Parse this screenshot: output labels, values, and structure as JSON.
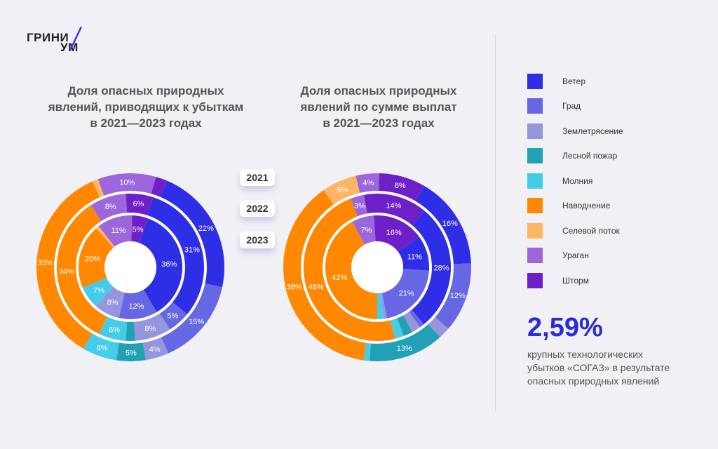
{
  "logo": {
    "line1": "ГРИНИ",
    "line2": "УМ",
    "accent": "#3a3aee"
  },
  "titles": {
    "left": [
      "Доля опасных природных",
      "явлений, приводящих к убыткам",
      "в 2021—2023 годах"
    ],
    "right": [
      "Доля опасных природных",
      "явлений по сумме выплат",
      "в 2021—2023 годах"
    ]
  },
  "years": [
    "2021",
    "2022",
    "2023"
  ],
  "legend": [
    {
      "label": "Ветер",
      "color": "#2e2ee6"
    },
    {
      "label": "Град",
      "color": "#6767e3"
    },
    {
      "label": "Землетрясение",
      "color": "#9696de"
    },
    {
      "label": "Лесной пожар",
      "color": "#22a0b6"
    },
    {
      "label": "Молния",
      "color": "#44cce8"
    },
    {
      "label": "Наводнение",
      "color": "#ff8800"
    },
    {
      "label": "Селевой поток",
      "color": "#ffb566"
    },
    {
      "label": "Ураган",
      "color": "#9d66dc"
    },
    {
      "label": "Шторм",
      "color": "#6e20c8"
    }
  ],
  "stat": {
    "value": "2,59%",
    "description": [
      "крупных технологических",
      "убытков «СОГАЗ» в результате",
      "опасных природных явлений"
    ]
  },
  "chart_data": [
    {
      "type": "donut",
      "title": "Доля опасных природных явлений, приводящих к убыткам в 2021—2023 годах",
      "rings": [
        "2021",
        "2022",
        "2023"
      ],
      "series": [
        {
          "name": "2021",
          "values": {
            "Ветер": 36,
            "Град": 12,
            "Землетрясение": 8,
            "Лесной пожар": 0,
            "Молния": 7,
            "Наводнение": 20,
            "Селевой поток": 1,
            "Ураган": 11,
            "Шторм": 5
          }
        },
        {
          "name": "2022",
          "values": {
            "Ветер": 31,
            "Град": 5,
            "Землетрясение": 8,
            "Лесной пожар": 2,
            "Молния": 6,
            "Наводнение": 34,
            "Селевой поток": 0,
            "Ураган": 8,
            "Шторм": 6
          }
        },
        {
          "name": "2023",
          "values": {
            "Ветер": 22,
            "Град": 15,
            "Землетрясение": 4,
            "Лесной пожар": 5,
            "Молния": 6,
            "Наводнение": 35,
            "Селевой поток": 1,
            "Ураган": 10,
            "Шторм": 2
          }
        }
      ]
    },
    {
      "type": "donut",
      "title": "Доля опасных природных явлений по сумме выплат в 2021—2023 годах",
      "rings": [
        "2021",
        "2022",
        "2023"
      ],
      "series": [
        {
          "name": "2021",
          "values": {
            "Ветер": 11,
            "Град": 21,
            "Землетрясение": 1,
            "Лесной пожар": 0,
            "Молния": 2,
            "Наводнение": 42,
            "Селевой поток": 0,
            "Ураган": 7,
            "Шторм": 16
          }
        },
        {
          "name": "2022",
          "values": {
            "Ветер": 28,
            "Град": 1,
            "Землетрясение": 2,
            "Лесной пожар": 2,
            "Молния": 2,
            "Наводнение": 48,
            "Селевой поток": 0,
            "Ураган": 3,
            "Шторм": 14
          }
        },
        {
          "name": "2023",
          "values": {
            "Ветер": 16,
            "Град": 12,
            "Землетрясение": 2,
            "Лесной пожар": 13,
            "Молния": 1,
            "Наводнение": 38,
            "Селевой поток": 6,
            "Ураган": 4,
            "Шторм": 8
          }
        }
      ]
    }
  ]
}
